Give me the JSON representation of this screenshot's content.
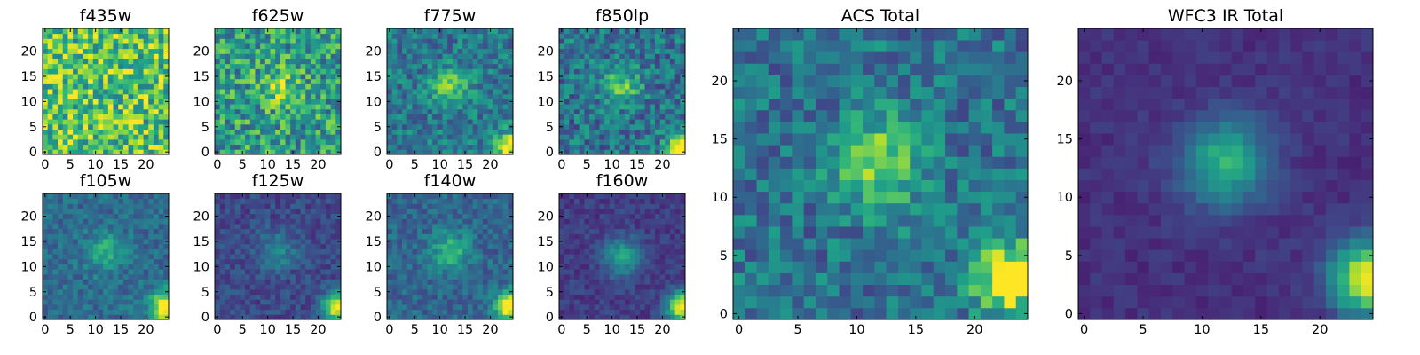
{
  "chart_data": [
    {
      "type": "heatmap",
      "title": "f435w",
      "colormap": "viridis",
      "grid_size": 25,
      "xlim": [
        0,
        24
      ],
      "ylim": [
        0,
        24
      ],
      "xticks": [
        "0",
        "5",
        "10",
        "15",
        "20"
      ],
      "yticks": [
        "0",
        "5",
        "10",
        "15",
        "20"
      ],
      "description": "noise-dominated, no visible source",
      "peak": [],
      "secondary": [],
      "source_amp": 0.0,
      "corner_amp": 0.1,
      "noise": 0.3,
      "base": 0.72
    },
    {
      "type": "heatmap",
      "title": "f625w",
      "colormap": "viridis",
      "grid_size": 25,
      "xlim": [
        0,
        24
      ],
      "ylim": [
        0,
        24
      ],
      "xticks": [
        "0",
        "5",
        "10",
        "15",
        "20"
      ],
      "yticks": [
        "0",
        "5",
        "10",
        "15",
        "20"
      ],
      "description": "noisy, faint central source",
      "peak": [
        12,
        13
      ],
      "secondary": [],
      "source_amp": 0.25,
      "corner_amp": 0.35,
      "noise": 0.28,
      "base": 0.55
    },
    {
      "type": "heatmap",
      "title": "f775w",
      "colormap": "viridis",
      "grid_size": 25,
      "xlim": [
        0,
        24
      ],
      "ylim": [
        0,
        24
      ],
      "xticks": [
        "0",
        "5",
        "10",
        "15",
        "20"
      ],
      "yticks": [
        "0",
        "5",
        "10",
        "15",
        "20"
      ],
      "description": "central source near (12, 13), bright bottom-right corner",
      "peak": [
        12,
        13
      ],
      "secondary": [
        24,
        1
      ],
      "source_amp": 0.35,
      "corner_amp": 0.6,
      "noise": 0.18,
      "base": 0.4
    },
    {
      "type": "heatmap",
      "title": "f850lp",
      "colormap": "viridis",
      "grid_size": 25,
      "xlim": [
        0,
        24
      ],
      "ylim": [
        0,
        24
      ],
      "xticks": [
        "0",
        "5",
        "10",
        "15",
        "20"
      ],
      "yticks": [
        "0",
        "5",
        "10",
        "15",
        "20"
      ],
      "description": "central source near (12, 13), bright bottom-right corner",
      "peak": [
        12,
        13
      ],
      "secondary": [
        24,
        1
      ],
      "source_amp": 0.35,
      "corner_amp": 0.7,
      "noise": 0.2,
      "base": 0.38
    },
    {
      "type": "heatmap",
      "title": "f105w",
      "colormap": "viridis",
      "grid_size": 25,
      "xlim": [
        0,
        24
      ],
      "ylim": [
        0,
        24
      ],
      "xticks": [
        "0",
        "5",
        "10",
        "15",
        "20"
      ],
      "yticks": [
        "0",
        "5",
        "10",
        "15",
        "20"
      ],
      "description": "diffuse central source, bright bottom-right corner",
      "peak": [
        12,
        13
      ],
      "secondary": [
        24,
        2
      ],
      "source_amp": 0.3,
      "corner_amp": 0.75,
      "noise": 0.12,
      "base": 0.35
    },
    {
      "type": "heatmap",
      "title": "f125w",
      "colormap": "viridis",
      "grid_size": 25,
      "xlim": [
        0,
        24
      ],
      "ylim": [
        0,
        24
      ],
      "xticks": [
        "0",
        "5",
        "10",
        "15",
        "20"
      ],
      "yticks": [
        "0",
        "5",
        "10",
        "15",
        "20"
      ],
      "description": "faint central source, bright bottom-right corner",
      "peak": [
        12,
        13
      ],
      "secondary": [
        24,
        2
      ],
      "source_amp": 0.25,
      "corner_amp": 0.8,
      "noise": 0.1,
      "base": 0.22
    },
    {
      "type": "heatmap",
      "title": "f140w",
      "colormap": "viridis",
      "grid_size": 25,
      "xlim": [
        0,
        24
      ],
      "ylim": [
        0,
        24
      ],
      "xticks": [
        "0",
        "5",
        "10",
        "15",
        "20"
      ],
      "yticks": [
        "0",
        "5",
        "10",
        "15",
        "20"
      ],
      "description": "central source, bright bottom-right corner",
      "peak": [
        12,
        13
      ],
      "secondary": [
        24,
        2
      ],
      "source_amp": 0.35,
      "corner_amp": 0.75,
      "noise": 0.12,
      "base": 0.33
    },
    {
      "type": "heatmap",
      "title": "f160w",
      "colormap": "viridis",
      "grid_size": 25,
      "xlim": [
        0,
        24
      ],
      "ylim": [
        0,
        24
      ],
      "xticks": [
        "0",
        "5",
        "10",
        "15",
        "20"
      ],
      "yticks": [
        "0",
        "5",
        "10",
        "15",
        "20"
      ],
      "description": "compact central source, bright bottom-right corner",
      "peak": [
        12,
        12
      ],
      "secondary": [
        24,
        2
      ],
      "source_amp": 0.4,
      "corner_amp": 0.85,
      "noise": 0.08,
      "base": 0.18
    },
    {
      "type": "heatmap",
      "title": "ACS Total",
      "colormap": "viridis",
      "grid_size": 25,
      "xlim": [
        0,
        24
      ],
      "ylim": [
        0,
        24
      ],
      "xticks": [
        "0",
        "5",
        "10",
        "15",
        "20"
      ],
      "yticks": [
        "0",
        "5",
        "10",
        "15",
        "20"
      ],
      "description": "central source near (12, 13), bright bottom-right corner",
      "peak": [
        12,
        13
      ],
      "secondary": [
        23,
        3
      ],
      "source_amp": 0.45,
      "corner_amp": 0.7,
      "noise": 0.18,
      "base": 0.38
    },
    {
      "type": "heatmap",
      "title": "WFC3 IR Total",
      "colormap": "viridis",
      "grid_size": 25,
      "xlim": [
        0,
        24
      ],
      "ylim": [
        0,
        24
      ],
      "xticks": [
        "0",
        "5",
        "10",
        "15",
        "20"
      ],
      "yticks": [
        "0",
        "5",
        "10",
        "15",
        "20"
      ],
      "description": "smooth central source near (12, 13), bright bottom-right corner",
      "peak": [
        12,
        13
      ],
      "secondary": [
        24,
        3
      ],
      "source_amp": 0.5,
      "corner_amp": 0.85,
      "noise": 0.05,
      "base": 0.14
    }
  ]
}
